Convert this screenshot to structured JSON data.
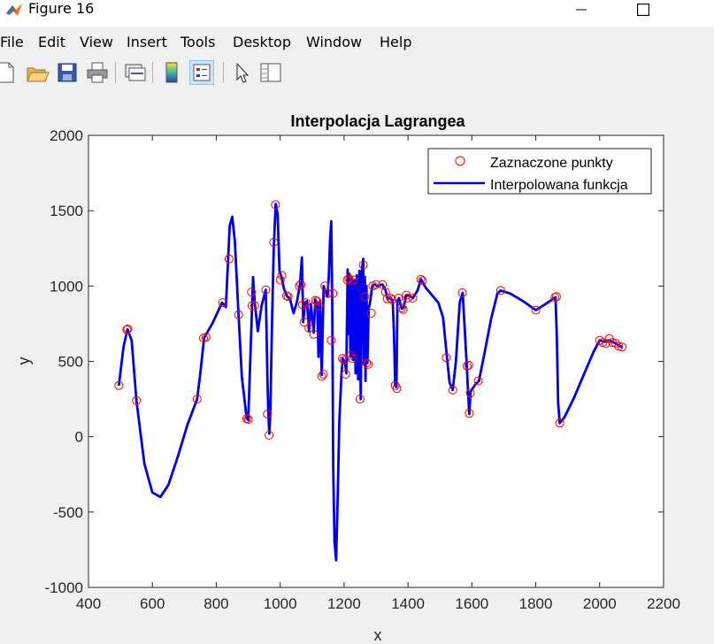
{
  "window": {
    "title": "Figure 16"
  },
  "menu": [
    "File",
    "Edit",
    "View",
    "Insert",
    "Tools",
    "Desktop",
    "Window",
    "Help"
  ],
  "toolbar_icons": [
    "new-figure-icon",
    "open-folder-icon",
    "save-icon",
    "print-icon",
    "link-plot-icon",
    "colorbar-icon",
    "legend-icon",
    "pointer-icon",
    "property-inspector-icon"
  ],
  "chart_data": {
    "type": "line",
    "title": "Interpolacja Lagrangea",
    "xlabel": "x",
    "ylabel": "y",
    "xlim": [
      400,
      2200
    ],
    "ylim": [
      -1000,
      2000
    ],
    "xticks": [
      400,
      600,
      800,
      1000,
      1200,
      1400,
      1600,
      1800,
      2000,
      2200
    ],
    "yticks": [
      -1000,
      -500,
      0,
      500,
      1000,
      1500,
      2000
    ],
    "legend_position": "top-right",
    "series": [
      {
        "name": "Zaznaczone punkty",
        "marker": "circle",
        "color": "#ff0000",
        "points": [
          [
            495,
            340
          ],
          [
            520,
            710
          ],
          [
            523,
            715
          ],
          [
            550,
            240
          ],
          [
            740,
            250
          ],
          [
            760,
            655
          ],
          [
            768,
            660
          ],
          [
            820,
            890
          ],
          [
            840,
            1180
          ],
          [
            870,
            810
          ],
          [
            895,
            120
          ],
          [
            900,
            115
          ],
          [
            910,
            960
          ],
          [
            912,
            870
          ],
          [
            920,
            870
          ],
          [
            955,
            975
          ],
          [
            960,
            150
          ],
          [
            965,
            10
          ],
          [
            980,
            1290
          ],
          [
            985,
            1540
          ],
          [
            1000,
            1040
          ],
          [
            1005,
            1070
          ],
          [
            1020,
            935
          ],
          [
            1025,
            930
          ],
          [
            1060,
            1000
          ],
          [
            1065,
            1010
          ],
          [
            1070,
            875
          ],
          [
            1075,
            760
          ],
          [
            1080,
            890
          ],
          [
            1090,
            720
          ],
          [
            1105,
            680
          ],
          [
            1110,
            905
          ],
          [
            1115,
            900
          ],
          [
            1120,
            870
          ],
          [
            1130,
            400
          ],
          [
            1135,
            415
          ],
          [
            1140,
            1000
          ],
          [
            1150,
            950
          ],
          [
            1160,
            640
          ],
          [
            1165,
            950
          ],
          [
            1195,
            520
          ],
          [
            1200,
            510
          ],
          [
            1205,
            415
          ],
          [
            1210,
            1040
          ],
          [
            1215,
            1050
          ],
          [
            1220,
            540
          ],
          [
            1225,
            520
          ],
          [
            1230,
            1040
          ],
          [
            1250,
            250
          ],
          [
            1260,
            1140
          ],
          [
            1265,
            930
          ],
          [
            1270,
            490
          ],
          [
            1275,
            480
          ],
          [
            1285,
            820
          ],
          [
            1290,
            1000
          ],
          [
            1300,
            1010
          ],
          [
            1320,
            1010
          ],
          [
            1330,
            960
          ],
          [
            1335,
            915
          ],
          [
            1345,
            920
          ],
          [
            1350,
            910
          ],
          [
            1360,
            340
          ],
          [
            1365,
            320
          ],
          [
            1370,
            920
          ],
          [
            1380,
            855
          ],
          [
            1385,
            845
          ],
          [
            1395,
            940
          ],
          [
            1400,
            920
          ],
          [
            1415,
            920
          ],
          [
            1440,
            1045
          ],
          [
            1445,
            1035
          ],
          [
            1520,
            525
          ],
          [
            1540,
            310
          ],
          [
            1570,
            955
          ],
          [
            1585,
            470
          ],
          [
            1590,
            475
          ],
          [
            1592,
            155
          ],
          [
            1595,
            290
          ],
          [
            1620,
            370
          ],
          [
            1690,
            970
          ],
          [
            1800,
            840
          ],
          [
            1860,
            925
          ],
          [
            1865,
            930
          ],
          [
            1875,
            90
          ],
          [
            2000,
            640
          ],
          [
            2010,
            625
          ],
          [
            2020,
            620
          ],
          [
            2030,
            650
          ],
          [
            2040,
            625
          ],
          [
            2050,
            620
          ],
          [
            2060,
            600
          ],
          [
            2070,
            595
          ]
        ]
      },
      {
        "name": "Interpolowana funkcja",
        "color": "#0000ee",
        "points": [
          [
            495,
            340
          ],
          [
            510,
            600
          ],
          [
            522,
            712
          ],
          [
            535,
            640
          ],
          [
            550,
            240
          ],
          [
            575,
            -180
          ],
          [
            600,
            -370
          ],
          [
            625,
            -400
          ],
          [
            650,
            -320
          ],
          [
            680,
            -130
          ],
          [
            710,
            80
          ],
          [
            740,
            250
          ],
          [
            750,
            420
          ],
          [
            762,
            655
          ],
          [
            790,
            760
          ],
          [
            818,
            890
          ],
          [
            830,
            860
          ],
          [
            842,
            1400
          ],
          [
            850,
            1460
          ],
          [
            858,
            1300
          ],
          [
            868,
            880
          ],
          [
            880,
            400
          ],
          [
            895,
            120
          ],
          [
            900,
            110
          ],
          [
            910,
            740
          ],
          [
            915,
            1060
          ],
          [
            920,
            900
          ],
          [
            930,
            700
          ],
          [
            942,
            870
          ],
          [
            955,
            975
          ],
          [
            960,
            400
          ],
          [
            963,
            150
          ],
          [
            966,
            20
          ],
          [
            969,
            150
          ],
          [
            975,
            800
          ],
          [
            980,
            1250
          ],
          [
            986,
            1545
          ],
          [
            992,
            1480
          ],
          [
            998,
            1100
          ],
          [
            1004,
            1060
          ],
          [
            1012,
            980
          ],
          [
            1022,
            930
          ],
          [
            1030,
            920
          ],
          [
            1042,
            820
          ],
          [
            1052,
            890
          ],
          [
            1062,
            1010
          ],
          [
            1068,
            1190
          ],
          [
            1072,
            760
          ],
          [
            1078,
            890
          ],
          [
            1084,
            900
          ],
          [
            1090,
            700
          ],
          [
            1096,
            880
          ],
          [
            1105,
            690
          ],
          [
            1110,
            910
          ],
          [
            1116,
            880
          ],
          [
            1120,
            530
          ],
          [
            1125,
            900
          ],
          [
            1130,
            410
          ],
          [
            1136,
            1000
          ],
          [
            1142,
            960
          ],
          [
            1148,
            930
          ],
          [
            1152,
            1060
          ],
          [
            1156,
            1300
          ],
          [
            1160,
            1430
          ],
          [
            1163,
            900
          ],
          [
            1166,
            -200
          ],
          [
            1170,
            -700
          ],
          [
            1175,
            -820
          ],
          [
            1180,
            -400
          ],
          [
            1185,
            100
          ],
          [
            1192,
            420
          ],
          [
            1196,
            520
          ],
          [
            1200,
            500
          ],
          [
            1203,
            490
          ],
          [
            1207,
            420
          ],
          [
            1211,
            1110
          ],
          [
            1214,
            680
          ],
          [
            1217,
            1080
          ],
          [
            1220,
            530
          ],
          [
            1224,
            1050
          ],
          [
            1228,
            510
          ],
          [
            1232,
            1040
          ],
          [
            1236,
            420
          ],
          [
            1240,
            1070
          ],
          [
            1244,
            380
          ],
          [
            1248,
            1100
          ],
          [
            1252,
            250
          ],
          [
            1256,
            1110
          ],
          [
            1260,
            1180
          ],
          [
            1262,
            480
          ],
          [
            1265,
            1060
          ],
          [
            1267,
            370
          ],
          [
            1270,
            1000
          ],
          [
            1273,
            490
          ],
          [
            1277,
            850
          ],
          [
            1282,
            900
          ],
          [
            1288,
            1000
          ],
          [
            1296,
            1010
          ],
          [
            1305,
            1000
          ],
          [
            1320,
            1010
          ],
          [
            1330,
            970
          ],
          [
            1336,
            915
          ],
          [
            1345,
            920
          ],
          [
            1352,
            905
          ],
          [
            1356,
            700
          ],
          [
            1360,
            340
          ],
          [
            1364,
            330
          ],
          [
            1367,
            900
          ],
          [
            1372,
            920
          ],
          [
            1380,
            850
          ],
          [
            1386,
            855
          ],
          [
            1395,
            940
          ],
          [
            1405,
            935
          ],
          [
            1415,
            920
          ],
          [
            1430,
            970
          ],
          [
            1441,
            1045
          ],
          [
            1455,
            990
          ],
          [
            1475,
            940
          ],
          [
            1495,
            890
          ],
          [
            1510,
            790
          ],
          [
            1522,
            525
          ],
          [
            1530,
            360
          ],
          [
            1540,
            310
          ],
          [
            1550,
            500
          ],
          [
            1562,
            890
          ],
          [
            1571,
            955
          ],
          [
            1578,
            700
          ],
          [
            1584,
            470
          ],
          [
            1588,
            300
          ],
          [
            1592,
            150
          ],
          [
            1596,
            300
          ],
          [
            1602,
            320
          ],
          [
            1612,
            350
          ],
          [
            1622,
            370
          ],
          [
            1640,
            560
          ],
          [
            1660,
            780
          ],
          [
            1680,
            950
          ],
          [
            1690,
            970
          ],
          [
            1720,
            950
          ],
          [
            1760,
            900
          ],
          [
            1800,
            840
          ],
          [
            1830,
            880
          ],
          [
            1862,
            925
          ],
          [
            1866,
            650
          ],
          [
            1870,
            230
          ],
          [
            1875,
            90
          ],
          [
            1890,
            130
          ],
          [
            1920,
            260
          ],
          [
            1950,
            410
          ],
          [
            1980,
            560
          ],
          [
            2000,
            640
          ],
          [
            2015,
            630
          ],
          [
            2030,
            640
          ],
          [
            2045,
            625
          ],
          [
            2060,
            605
          ],
          [
            2070,
            595
          ]
        ]
      }
    ]
  }
}
